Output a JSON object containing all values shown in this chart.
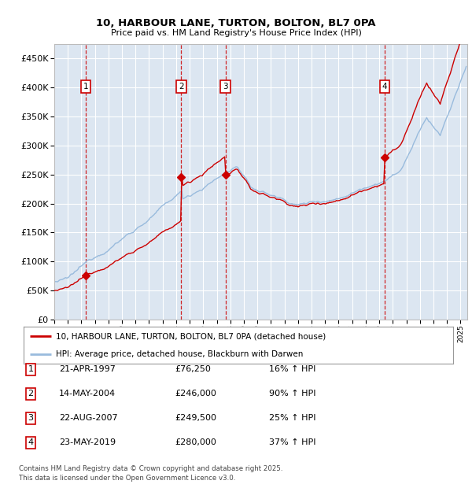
{
  "title": "10, HARBOUR LANE, TURTON, BOLTON, BL7 0PA",
  "subtitle": "Price paid vs. HM Land Registry's House Price Index (HPI)",
  "sale_labels": [
    "1",
    "2",
    "3",
    "4"
  ],
  "sale_dates_numeric": [
    1997.31,
    2004.37,
    2007.64,
    2019.39
  ],
  "sale_prices": [
    76250,
    246000,
    249500,
    280000
  ],
  "hpi_pct_above": [
    1.16,
    1.9,
    1.25,
    1.37
  ],
  "table_rows": [
    {
      "num": "1",
      "date": "21-APR-1997",
      "price": "£76,250",
      "change": "16% ↑ HPI"
    },
    {
      "num": "2",
      "date": "14-MAY-2004",
      "price": "£246,000",
      "change": "90% ↑ HPI"
    },
    {
      "num": "3",
      "date": "22-AUG-2007",
      "price": "£249,500",
      "change": "25% ↑ HPI"
    },
    {
      "num": "4",
      "date": "23-MAY-2019",
      "price": "£280,000",
      "change": "37% ↑ HPI"
    }
  ],
  "legend_line1": "10, HARBOUR LANE, TURTON, BOLTON, BL7 0PA (detached house)",
  "legend_line2": "HPI: Average price, detached house, Blackburn with Darwen",
  "footer": "Contains HM Land Registry data © Crown copyright and database right 2025.\nThis data is licensed under the Open Government Licence v3.0.",
  "ylim": [
    0,
    475000
  ],
  "yticks": [
    0,
    50000,
    100000,
    150000,
    200000,
    250000,
    300000,
    350000,
    400000,
    450000
  ],
  "bg_color": "#dce6f1",
  "red_line_color": "#cc0000",
  "blue_line_color": "#99bbdd",
  "vline_color": "#cc0000",
  "grid_color": "#ffffff",
  "box_color": "#cc0000",
  "xlim_start": 1995,
  "xlim_end": 2025.5
}
